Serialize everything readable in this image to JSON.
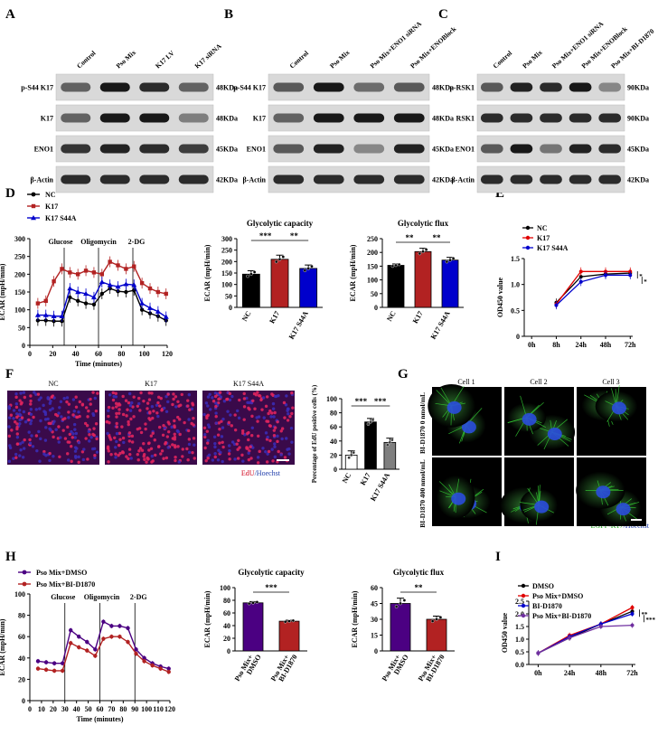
{
  "panels": {
    "A": {
      "letter": "A",
      "lanes": [
        "Control",
        "Pso Mix",
        "K17 LV",
        "K17 siRNA"
      ],
      "rows": [
        {
          "label": "p-S44 K17",
          "kda": "48KDa",
          "bands": [
            0.55,
            0.95,
            0.85,
            0.55
          ]
        },
        {
          "label": "K17",
          "kda": "48KDa",
          "bands": [
            0.55,
            0.95,
            0.95,
            0.4
          ]
        },
        {
          "label": "ENO1",
          "kda": "45KDa",
          "bands": [
            0.8,
            0.9,
            0.85,
            0.75
          ]
        },
        {
          "label": "β-Actin",
          "kda": "42KDa",
          "bands": [
            0.85,
            0.85,
            0.85,
            0.85
          ]
        }
      ]
    },
    "B": {
      "letter": "B",
      "lanes": [
        "Control",
        "Pso Mix",
        "Pso Mix+ENO1 siRNA",
        "Pso Mix+ENOBlock"
      ],
      "rows": [
        {
          "label": "p-S44 K17",
          "kda": "48KDa",
          "bands": [
            0.6,
            0.95,
            0.5,
            0.6
          ]
        },
        {
          "label": "K17",
          "kda": "48KDa",
          "bands": [
            0.55,
            0.95,
            0.95,
            0.95
          ]
        },
        {
          "label": "ENO1",
          "kda": "45KDa",
          "bands": [
            0.6,
            0.9,
            0.35,
            0.9
          ]
        },
        {
          "label": "β-Actin",
          "kda": "42KDa",
          "bands": [
            0.85,
            0.85,
            0.85,
            0.85
          ]
        }
      ]
    },
    "C": {
      "letter": "C",
      "lanes": [
        "Control",
        "Pso Mix",
        "Pso Mix+ENO1 siRNA",
        "Pso Mix+ENOBlock",
        "Pso Mix+BI-D1870"
      ],
      "rows": [
        {
          "label": "p-RSK1",
          "kda": "90KDa",
          "bands": [
            0.6,
            0.9,
            0.85,
            0.95,
            0.35
          ]
        },
        {
          "label": "RSK1",
          "kda": "90KDa",
          "bands": [
            0.85,
            0.85,
            0.85,
            0.85,
            0.85
          ]
        },
        {
          "label": "ENO1",
          "kda": "45KDa",
          "bands": [
            0.6,
            0.95,
            0.45,
            0.9,
            0.85
          ]
        },
        {
          "label": "β-Actin",
          "kda": "42KDa",
          "bands": [
            0.85,
            0.85,
            0.85,
            0.85,
            0.85
          ]
        }
      ]
    },
    "D": {
      "letter": "D"
    },
    "E": {
      "letter": "E"
    },
    "F": {
      "letter": "F",
      "image_labels": [
        "NC",
        "K17",
        "K17 S44A"
      ],
      "stain_label_1": "EdU",
      "stain_label_2": "/Hoechst"
    },
    "G": {
      "letter": "G",
      "col_labels": [
        "Cell 1",
        "Cell 2",
        "Cell 3"
      ],
      "row_labels": [
        "BI-D1870 0 nmol/mL",
        "BI-D1870 400 nmol/mL"
      ],
      "stain_label_1": "EGFP-K17",
      "stain_label_2": "/Hoechst"
    },
    "H": {
      "letter": "H"
    },
    "I": {
      "letter": "I"
    }
  },
  "chart_data": [
    {
      "id": "D-ecar",
      "type": "line",
      "xlabel": "Time (minutes)",
      "ylabel": "ECAR (mpH/min)",
      "xlim": [
        0,
        120
      ],
      "ylim": [
        0,
        300
      ],
      "xticks": [
        0,
        20,
        40,
        60,
        80,
        100,
        120
      ],
      "yticks": [
        0,
        50,
        100,
        150,
        200,
        250,
        300
      ],
      "injections": [
        "Glucose",
        "Oligomycin",
        "2-DG"
      ],
      "injection_times": [
        30,
        60,
        90
      ],
      "legend_position": "top-left",
      "x": [
        7,
        14,
        21,
        28,
        35,
        42,
        49,
        56,
        63,
        70,
        77,
        84,
        91,
        98,
        105,
        112,
        119
      ],
      "series": [
        {
          "name": "NC",
          "color": "#000000",
          "marker": "circle",
          "values": [
            70,
            70,
            68,
            68,
            135,
            125,
            118,
            115,
            145,
            160,
            152,
            150,
            155,
            100,
            90,
            82,
            70
          ]
        },
        {
          "name": "K17",
          "color": "#b22222",
          "marker": "square",
          "values": [
            118,
            125,
            180,
            215,
            205,
            200,
            210,
            205,
            200,
            235,
            225,
            215,
            222,
            175,
            160,
            150,
            145
          ]
        },
        {
          "name": "K17 S44A",
          "color": "#0000cc",
          "marker": "triangle",
          "values": [
            85,
            85,
            82,
            82,
            160,
            150,
            145,
            135,
            178,
            170,
            165,
            172,
            170,
            118,
            105,
            95,
            80
          ]
        }
      ]
    },
    {
      "id": "D-capacity",
      "type": "bar",
      "title": "Glycolytic capacity",
      "ylabel": "ECAR (mpH/min)",
      "ylim": [
        0,
        300
      ],
      "yticks": [
        0,
        50,
        100,
        150,
        200,
        250,
        300
      ],
      "categories": [
        "NC",
        "K17",
        "K17 S44A"
      ],
      "values": [
        145,
        210,
        170
      ],
      "errors": [
        15,
        18,
        15
      ],
      "colors": [
        "#000000",
        "#b22222",
        "#0000cc"
      ],
      "significance": [
        {
          "pair": [
            0,
            1
          ],
          "label": "***"
        },
        {
          "pair": [
            1,
            2
          ],
          "label": "**"
        }
      ]
    },
    {
      "id": "D-flux",
      "type": "bar",
      "title": "Glycolytic flux",
      "ylabel": "ECAR (mpH/min)",
      "ylim": [
        0,
        250
      ],
      "yticks": [
        0,
        50,
        100,
        150,
        200,
        250
      ],
      "categories": [
        "NC",
        "K17",
        "K17 S44A"
      ],
      "values": [
        153,
        203,
        172
      ],
      "errors": [
        5,
        12,
        10
      ],
      "colors": [
        "#000000",
        "#b22222",
        "#0000cc"
      ],
      "significance": [
        {
          "pair": [
            0,
            1
          ],
          "label": "**"
        },
        {
          "pair": [
            1,
            2
          ],
          "label": "**"
        }
      ]
    },
    {
      "id": "E-od",
      "type": "line",
      "ylabel": "OD450 value",
      "ylim": [
        0,
        1.5
      ],
      "yticks": [
        "0",
        "0.5",
        "1.0",
        "1.5"
      ],
      "categories": [
        "0h",
        "8h",
        "24h",
        "48h",
        "72h"
      ],
      "legend_position": "top-left",
      "series": [
        {
          "name": "NC",
          "color": "#000000",
          "values": [
            null,
            0.65,
            1.15,
            1.2,
            1.22
          ]
        },
        {
          "name": "K17",
          "color": "#e00000",
          "values": [
            null,
            0.62,
            1.25,
            1.25,
            1.25
          ]
        },
        {
          "name": "K17 S44A",
          "color": "#0000cc",
          "values": [
            null,
            0.6,
            1.05,
            1.18,
            1.18
          ]
        }
      ],
      "significance": [
        "*",
        "*"
      ]
    },
    {
      "id": "F-edu",
      "type": "bar",
      "ylabel": "Percentage of EdU positive cells (%)",
      "ylim": [
        0,
        100
      ],
      "yticks": [
        0,
        20,
        40,
        60,
        80,
        100
      ],
      "categories": [
        "NC",
        "K17",
        "K17 S44A"
      ],
      "values": [
        20,
        67,
        38
      ],
      "errors": [
        6,
        5,
        6
      ],
      "colors": [
        "#ffffff",
        "#000000",
        "#7f7f7f"
      ],
      "significance": [
        {
          "pair": [
            0,
            1
          ],
          "label": "***"
        },
        {
          "pair": [
            1,
            2
          ],
          "label": "***"
        }
      ]
    },
    {
      "id": "H-ecar",
      "type": "line",
      "xlabel": "Time (minutes)",
      "ylabel": "ECAR (mpH/min)",
      "xlim": [
        0,
        120
      ],
      "ylim": [
        0,
        100
      ],
      "xticks": [
        0,
        10,
        20,
        30,
        40,
        50,
        60,
        70,
        80,
        90,
        100,
        110,
        120
      ],
      "yticks": [
        0,
        20,
        40,
        60,
        80,
        100
      ],
      "injections": [
        "Glucose",
        "Oligomycin",
        "2-DG"
      ],
      "injection_times": [
        30,
        60,
        90
      ],
      "legend_position": "top-left",
      "x": [
        7,
        14,
        21,
        28,
        35,
        42,
        49,
        56,
        63,
        70,
        77,
        84,
        91,
        98,
        105,
        112,
        119
      ],
      "series": [
        {
          "name": "Pso Mix+DMSO",
          "color": "#4b0082",
          "values": [
            37,
            36,
            35,
            35,
            66,
            60,
            55,
            48,
            74,
            70,
            70,
            68,
            48,
            40,
            35,
            32,
            30
          ]
        },
        {
          "name": "Pso Mix+BI-D1870",
          "color": "#b22222",
          "values": [
            30,
            29,
            28,
            28,
            54,
            50,
            47,
            42,
            58,
            60,
            60,
            55,
            44,
            37,
            33,
            30,
            27
          ]
        }
      ]
    },
    {
      "id": "H-capacity",
      "type": "bar",
      "title": "Glycolytic capacity",
      "ylabel": "ECAR (mpH/min)",
      "ylim": [
        0,
        100
      ],
      "yticks": [
        0,
        20,
        40,
        60,
        80,
        100
      ],
      "categories": [
        "Pso Mix+ DMSO",
        "Pso Mix+ BI-D1870"
      ],
      "values": [
        76,
        47
      ],
      "errors": [
        2,
        1.5
      ],
      "colors": [
        "#4b0082",
        "#b22222"
      ],
      "significance": [
        {
          "pair": [
            0,
            1
          ],
          "label": "***"
        }
      ]
    },
    {
      "id": "H-flux",
      "type": "bar",
      "title": "Glycolytic flux",
      "ylabel": "ECAR (mpH/min)",
      "ylim": [
        0,
        60
      ],
      "yticks": [
        0,
        15,
        30,
        45,
        60
      ],
      "categories": [
        "Pso Mix+ DMSO",
        "Pso Mix+ BI-D1870"
      ],
      "values": [
        45,
        30
      ],
      "errors": [
        5,
        3
      ],
      "colors": [
        "#4b0082",
        "#b22222"
      ],
      "significance": [
        {
          "pair": [
            0,
            1
          ],
          "label": "**"
        }
      ]
    },
    {
      "id": "I-od",
      "type": "line",
      "ylabel": "OD450 value",
      "ylim": [
        0,
        2.5
      ],
      "yticks": [
        "0.0",
        "0.5",
        "1.0",
        "1.5",
        "2.0",
        "2.5"
      ],
      "categories": [
        "0h",
        "24h",
        "48h",
        "72h"
      ],
      "legend_position": "top-left",
      "series": [
        {
          "name": "DMSO",
          "color": "#000000",
          "values": [
            0.45,
            1.05,
            1.6,
            2.1
          ]
        },
        {
          "name": "Pso Mix+DMSO",
          "color": "#e00000",
          "values": [
            0.45,
            1.15,
            1.6,
            2.25
          ]
        },
        {
          "name": "BI-D1870",
          "color": "#0000cc",
          "values": [
            0.45,
            1.1,
            1.6,
            2.0
          ]
        },
        {
          "name": "Pso Mix+BI-D1870",
          "color": "#7030a0",
          "values": [
            0.45,
            1.05,
            1.5,
            1.55
          ]
        }
      ],
      "significance": [
        "**",
        "***"
      ]
    }
  ]
}
